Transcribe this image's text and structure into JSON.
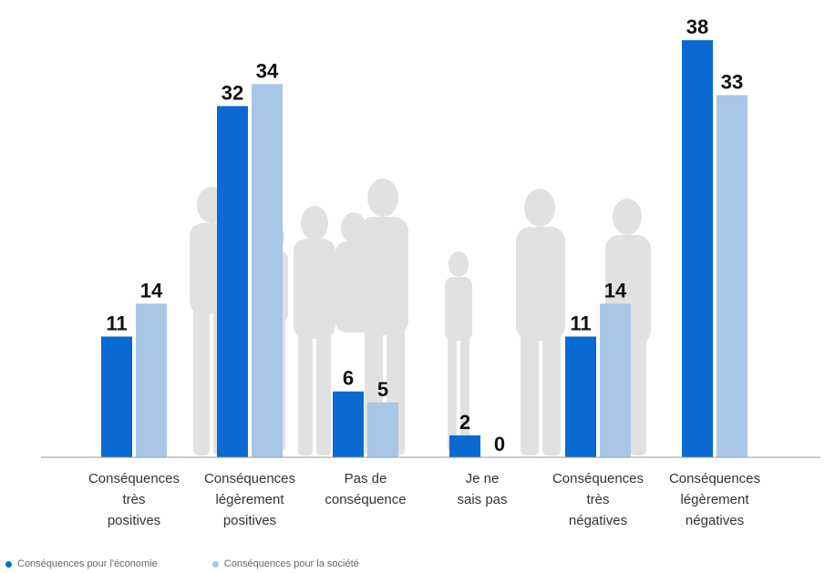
{
  "chart_data": {
    "type": "bar",
    "title": "",
    "xlabel": "",
    "ylabel": "",
    "ylim": [
      0,
      40
    ],
    "grid": false,
    "legend_position": "bottom-left",
    "categories": [
      "Conséquences très positives",
      "Conséquences légèrement positives",
      "Pas de conséquence",
      "Je ne sais pas",
      "Conséquences très négatives",
      "Conséquences légèrement négatives"
    ],
    "category_lines": [
      [
        "Conséquences",
        "très",
        "positives"
      ],
      [
        "Conséquences",
        "légèrement",
        "positives"
      ],
      [
        "Pas de",
        "conséquence"
      ],
      [
        "Je ne",
        "sais pas"
      ],
      [
        "Conséquences",
        "très",
        "négatives"
      ],
      [
        "Conséquences",
        "légèrement",
        "négatives"
      ]
    ],
    "series": [
      {
        "name": "Conséquences pour l'économie",
        "color": "#0a6ad1",
        "values": [
          11,
          32,
          6,
          2,
          11,
          38
        ]
      },
      {
        "name": "Conséquences pour la société",
        "color": "#a8c6e8",
        "values": [
          14,
          34,
          5,
          0,
          14,
          33
        ]
      }
    ]
  }
}
